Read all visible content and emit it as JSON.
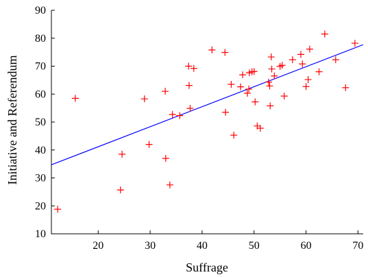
{
  "chart_data": {
    "type": "scatter",
    "title": "",
    "xlabel": "Suffrage",
    "ylabel": "Initiative and Referendum",
    "xlim": [
      11,
      71
    ],
    "ylim": [
      10,
      90
    ],
    "xticks": [
      20,
      30,
      40,
      50,
      60,
      70
    ],
    "yticks": [
      10,
      20,
      30,
      40,
      50,
      60,
      70,
      80,
      90
    ],
    "grid": false,
    "legend": "none",
    "marker": "plus",
    "marker_color": "#ff0000",
    "fit_line": {
      "x": [
        11,
        71
      ],
      "y": [
        34.7,
        77.7
      ],
      "color": "#0000ff"
    },
    "series": [
      {
        "points": [
          [
            12.2,
            18.8
          ],
          [
            15.6,
            58.5
          ],
          [
            24.3,
            25.7
          ],
          [
            24.6,
            38.5
          ],
          [
            28.9,
            58.3
          ],
          [
            29.8,
            42.0
          ],
          [
            32.9,
            61.0
          ],
          [
            33.0,
            37.0
          ],
          [
            33.8,
            27.5
          ],
          [
            34.3,
            52.7
          ],
          [
            35.7,
            52.3
          ],
          [
            37.4,
            70.0
          ],
          [
            37.5,
            63.1
          ],
          [
            37.7,
            54.9
          ],
          [
            38.4,
            69.2
          ],
          [
            41.9,
            75.8
          ],
          [
            44.4,
            74.9
          ],
          [
            44.5,
            53.5
          ],
          [
            45.6,
            63.5
          ],
          [
            46.1,
            45.3
          ],
          [
            47.4,
            62.6
          ],
          [
            47.8,
            66.9
          ],
          [
            48.7,
            60.3
          ],
          [
            49.0,
            61.8
          ],
          [
            49.1,
            67.6
          ],
          [
            49.6,
            68.0
          ],
          [
            50.0,
            68.1
          ],
          [
            50.2,
            57.2
          ],
          [
            50.6,
            48.6
          ],
          [
            51.2,
            47.8
          ],
          [
            52.8,
            64.3
          ],
          [
            53.0,
            62.9
          ],
          [
            53.1,
            55.8
          ],
          [
            53.3,
            73.3
          ],
          [
            53.4,
            69.0
          ],
          [
            53.9,
            66.5
          ],
          [
            55.0,
            69.9
          ],
          [
            55.4,
            70.3
          ],
          [
            55.8,
            59.3
          ],
          [
            57.4,
            72.3
          ],
          [
            59.0,
            74.2
          ],
          [
            59.3,
            70.8
          ],
          [
            60.0,
            62.7
          ],
          [
            60.4,
            65.2
          ],
          [
            60.7,
            76.1
          ],
          [
            62.5,
            68.0
          ],
          [
            63.6,
            81.5
          ],
          [
            65.7,
            72.3
          ],
          [
            67.6,
            62.3
          ],
          [
            69.4,
            78.2
          ]
        ]
      }
    ]
  }
}
